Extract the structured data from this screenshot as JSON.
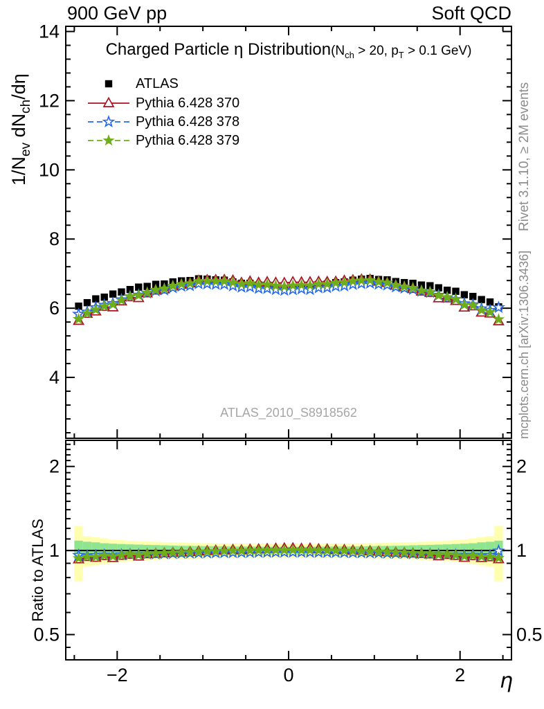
{
  "header": {
    "left": "900 GeV pp",
    "right": "Soft QCD"
  },
  "title": {
    "main": "Charged Particle η Distribution",
    "cut_open": "(N",
    "cut_sub_nch": "ch",
    "cut_mid": " > 20, p",
    "cut_sub_pt": "T",
    "cut_close": " > 0.1 GeV)"
  },
  "legend": {
    "items": [
      {
        "label": "ATLAS",
        "marker": "square-filled",
        "color": "#000000",
        "line": "none"
      },
      {
        "label": "Pythia 6.428 370",
        "marker": "triangle-open",
        "color": "#aa1122",
        "line": "solid"
      },
      {
        "label": "Pythia 6.428 378",
        "marker": "star-open",
        "color": "#2266ee",
        "line": "dashed"
      },
      {
        "label": "Pythia 6.428 379",
        "marker": "star-filled",
        "color": "#6fae1a",
        "line": "dashed"
      }
    ]
  },
  "watermark": "ATLAS_2010_S8918562",
  "side_notes": {
    "top": "Rivet 3.1.10, ≥ 2M events",
    "bottom": "mcplots.cern.ch [arXiv:1306.3436]"
  },
  "axis_labels": {
    "y_top_p1": "1/N",
    "y_top_sub1": "ev",
    "y_top_p2": " dN",
    "y_top_sub2": "ch",
    "y_top_p3": "/dη",
    "y_ratio": "Ratio to ATLAS",
    "x": "η"
  },
  "chart_data": {
    "type": "scatter",
    "title": "Charged Particle η Distribution (Nch > 20, pT > 0.1 GeV)",
    "xlabel": "η",
    "ylabel": "1/Nev dNch/dη",
    "ylabel_ratio": "Ratio to ATLAS",
    "axes": {
      "x": {
        "min": -2.6,
        "max": 2.6,
        "major_ticks": [
          -2,
          0,
          2
        ],
        "major_labels": [
          "−2",
          "0",
          "2"
        ],
        "minor_step": 0.5
      },
      "y_top": {
        "min": 2.24,
        "max": 14.15,
        "major_ticks": [
          4,
          6,
          8,
          10,
          12,
          14
        ],
        "minor_step": 0.4,
        "scale": "linear"
      },
      "y_ratio": {
        "min": 0.406,
        "max": 2.48,
        "major_ticks": [
          0.5,
          1,
          2
        ],
        "major_labels": [
          "0.5",
          "1",
          "2"
        ],
        "scale": "log"
      }
    },
    "x": [
      -2.45,
      -2.35,
      -2.25,
      -2.15,
      -2.05,
      -1.95,
      -1.85,
      -1.75,
      -1.65,
      -1.55,
      -1.45,
      -1.35,
      -1.25,
      -1.15,
      -1.05,
      -0.95,
      -0.85,
      -0.75,
      -0.65,
      -0.55,
      -0.45,
      -0.35,
      -0.25,
      -0.15,
      -0.05,
      0.05,
      0.15,
      0.25,
      0.35,
      0.45,
      0.55,
      0.65,
      0.75,
      0.85,
      0.95,
      1.05,
      1.15,
      1.25,
      1.35,
      1.45,
      1.55,
      1.65,
      1.75,
      1.85,
      1.95,
      2.05,
      2.15,
      2.25,
      2.35,
      2.45
    ],
    "series": [
      {
        "name": "ATLAS",
        "role": "reference-data",
        "values": [
          6.06,
          6.16,
          6.27,
          6.32,
          6.41,
          6.47,
          6.54,
          6.61,
          6.63,
          6.69,
          6.7,
          6.76,
          6.79,
          6.8,
          6.85,
          6.84,
          6.82,
          6.81,
          6.76,
          6.72,
          6.72,
          6.67,
          6.67,
          6.63,
          6.61,
          6.63,
          6.65,
          6.64,
          6.69,
          6.7,
          6.74,
          6.76,
          6.81,
          6.84,
          6.86,
          6.83,
          6.82,
          6.77,
          6.74,
          6.72,
          6.67,
          6.65,
          6.59,
          6.52,
          6.49,
          6.39,
          6.34,
          6.25,
          6.18,
          6.04
        ]
      },
      {
        "name": "Pythia 6.428 370",
        "role": "mc-prediction",
        "ratio_to_atlas": [
          0.93,
          0.948,
          0.942,
          0.956,
          0.94,
          0.958,
          0.966,
          0.952,
          0.97,
          0.973,
          0.977,
          0.981,
          0.984,
          0.988,
          0.992,
          0.996,
          0.999,
          1.001,
          1.006,
          1.002,
          1.008,
          1.01,
          1.013,
          1.016,
          1.018,
          1.019,
          1.015,
          1.017,
          1.011,
          1.009,
          1.004,
          1.005,
          1.0,
          0.998,
          0.995,
          0.991,
          0.987,
          0.983,
          0.98,
          0.976,
          0.972,
          0.969,
          0.954,
          0.964,
          0.957,
          0.942,
          0.955,
          0.94,
          0.946,
          0.931
        ]
      },
      {
        "name": "Pythia 6.428 378",
        "role": "mc-prediction",
        "ratio_to_atlas": [
          0.962,
          0.957,
          0.96,
          0.964,
          0.958,
          0.966,
          0.969,
          0.966,
          0.971,
          0.972,
          0.974,
          0.975,
          0.977,
          0.978,
          0.979,
          0.98,
          0.981,
          0.982,
          0.983,
          0.983,
          0.984,
          0.985,
          0.985,
          0.986,
          0.986,
          0.986,
          0.986,
          0.985,
          0.985,
          0.984,
          0.984,
          0.983,
          0.982,
          0.981,
          0.98,
          0.98,
          0.978,
          0.977,
          0.976,
          0.974,
          0.973,
          0.971,
          0.968,
          0.967,
          0.965,
          0.96,
          0.963,
          0.958,
          0.961,
          0.997
        ]
      },
      {
        "name": "Pythia 6.428 379",
        "role": "mc-prediction",
        "ratio_to_atlas": [
          0.938,
          0.951,
          0.95,
          0.959,
          0.953,
          0.963,
          0.969,
          0.964,
          0.973,
          0.976,
          0.98,
          0.983,
          0.986,
          0.988,
          0.99,
          0.992,
          0.994,
          0.996,
          0.998,
          0.997,
          1.0,
          1.001,
          1.002,
          1.003,
          1.003,
          1.004,
          1.003,
          1.003,
          1.001,
          1.0,
          0.999,
          0.998,
          0.996,
          0.994,
          0.992,
          0.99,
          0.988,
          0.985,
          0.983,
          0.98,
          0.976,
          0.973,
          0.966,
          0.969,
          0.964,
          0.954,
          0.959,
          0.951,
          0.952,
          0.94
        ]
      }
    ],
    "ratio_band_yellow_halfwidth": [
      0.225,
      0.125,
      0.115,
      0.105,
      0.095,
      0.09,
      0.085,
      0.08,
      0.078,
      0.075,
      0.072,
      0.07,
      0.068,
      0.066,
      0.064,
      0.062,
      0.061,
      0.06,
      0.059,
      0.058,
      0.057,
      0.056,
      0.056,
      0.055,
      0.055,
      0.055,
      0.055,
      0.056,
      0.056,
      0.057,
      0.058,
      0.059,
      0.06,
      0.061,
      0.062,
      0.064,
      0.066,
      0.068,
      0.07,
      0.072,
      0.075,
      0.078,
      0.08,
      0.085,
      0.09,
      0.095,
      0.105,
      0.115,
      0.125,
      0.225
    ],
    "ratio_band_green_halfwidth": [
      0.085,
      0.075,
      0.07,
      0.062,
      0.058,
      0.055,
      0.052,
      0.05,
      0.048,
      0.046,
      0.044,
      0.042,
      0.04,
      0.039,
      0.038,
      0.037,
      0.036,
      0.035,
      0.034,
      0.034,
      0.033,
      0.033,
      0.032,
      0.032,
      0.032,
      0.032,
      0.032,
      0.032,
      0.033,
      0.033,
      0.034,
      0.034,
      0.035,
      0.036,
      0.037,
      0.038,
      0.039,
      0.04,
      0.042,
      0.044,
      0.046,
      0.048,
      0.05,
      0.052,
      0.055,
      0.058,
      0.062,
      0.07,
      0.075,
      0.085
    ],
    "band_colors": {
      "yellow": "#ffffb0",
      "green": "#8fe58f"
    },
    "reference_line": 1
  }
}
